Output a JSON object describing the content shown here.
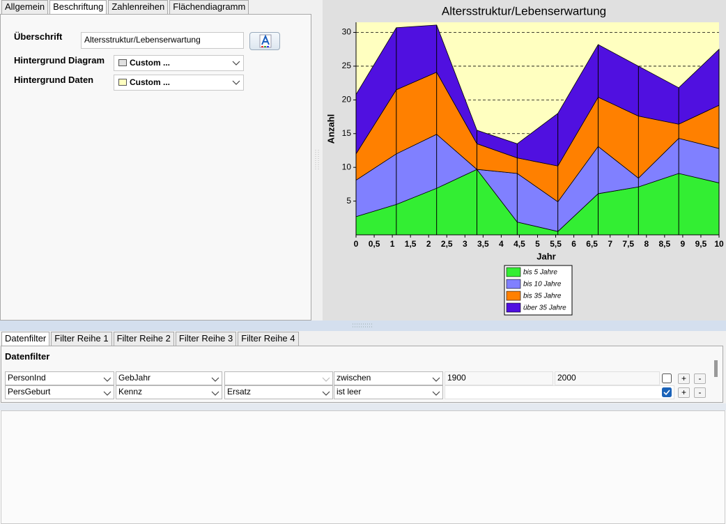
{
  "left_panel": {
    "tabs": [
      "Allgemein",
      "Beschriftung",
      "Zahlenreihen",
      "Flächendiagramm"
    ],
    "active_tab": 1,
    "heading_label": "Überschrift",
    "heading_value": "Altersstruktur/Lebenserwartung",
    "diagram_bg_label": "Hintergrund Diagram",
    "diagram_bg_value": "Custom ...",
    "diagram_bg_color": "#e0e0e0",
    "data_bg_label": "Hintergrund Daten",
    "data_bg_value": "Custom ...",
    "data_bg_color": "#ffffc0"
  },
  "chart_data": {
    "type": "stacked_area",
    "title": "Altersstruktur/Lebenserwartung",
    "x_label": "Jahr",
    "y_label": "Anzahl",
    "x": [
      0,
      1.11,
      2.22,
      3.33,
      4.44,
      5.56,
      6.67,
      7.78,
      8.89,
      10
    ],
    "series": [
      {
        "name": "bis 5 Jahre",
        "color": "#33ee33",
        "values": [
          2.7,
          4.5,
          6.9,
          9.7,
          1.9,
          0.5,
          6.1,
          7.1,
          9.1,
          7.7
        ]
      },
      {
        "name": "bis 10 Jahre",
        "color": "#8080ff",
        "values": [
          5.4,
          7.5,
          8.0,
          0,
          7.2,
          4.4,
          7.0,
          1.3,
          5.2,
          5.1
        ]
      },
      {
        "name": "bis 35 Jahre",
        "color": "#ff8000",
        "values": [
          3.9,
          9.5,
          9.2,
          3.8,
          2.3,
          5.3,
          7.3,
          9.2,
          2.1,
          6.4
        ]
      },
      {
        "name": "über 35 Jahre",
        "color": "#5010e0",
        "values": [
          8.8,
          9.2,
          7.0,
          2.0,
          2.1,
          7.8,
          7.8,
          7.4,
          5.4,
          8.3
        ]
      }
    ],
    "xlim": [
      0,
      10
    ],
    "ylim": [
      0,
      31.5
    ],
    "xticks": [
      0,
      {
        "value": 0.5,
        "label": "0,5"
      },
      1,
      {
        "value": 1.5,
        "label": "1,5"
      },
      2,
      {
        "value": 2.5,
        "label": "2,5"
      },
      3,
      {
        "value": 3.5,
        "label": "3,5"
      },
      4,
      {
        "value": 4.5,
        "label": "4,5"
      },
      5,
      {
        "value": 5.5,
        "label": "5,5"
      },
      6,
      {
        "value": 6.5,
        "label": "6,5"
      },
      7,
      {
        "value": 7.5,
        "label": "7,5"
      },
      8,
      {
        "value": 8.5,
        "label": "8,5"
      },
      9,
      {
        "value": 9.5,
        "label": "9,5"
      },
      10
    ],
    "yticks": [
      5,
      10,
      15,
      20,
      25,
      30
    ],
    "grid": true,
    "legend": "bottom",
    "plot_background": "#ffffc0"
  },
  "filter_panel": {
    "tabs": [
      "Datenfilter",
      "Filter Reihe 1",
      "Filter Reihe 2",
      "Filter Reihe 3",
      "Filter Reihe 4"
    ],
    "active_tab": 0,
    "heading": "Datenfilter",
    "rows": [
      {
        "field": "PersonInd",
        "column": "GebJahr",
        "operator": "zwischen",
        "from": "1900",
        "to": "2000",
        "active": false
      },
      {
        "field": "PersGeburt",
        "column": "Kennz",
        "substitute": "Ersatz",
        "operator": "ist leer",
        "active": true
      }
    ],
    "add_button": "+",
    "remove_button": "-"
  }
}
